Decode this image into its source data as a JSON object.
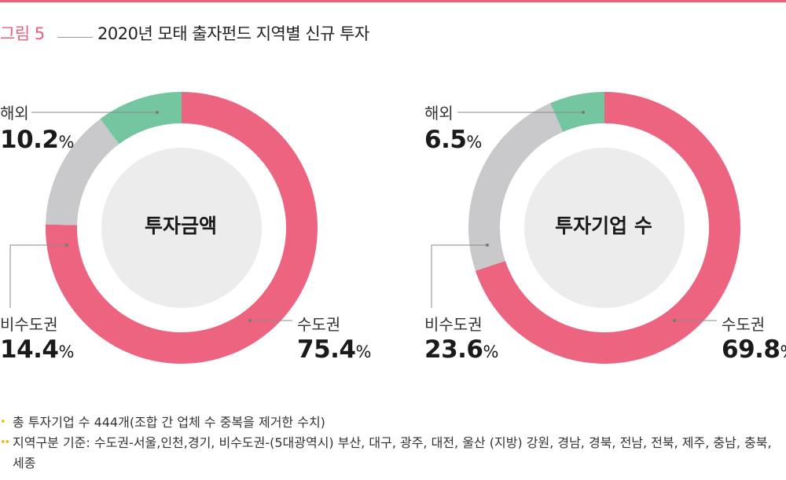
{
  "figure": {
    "label": "그림 5",
    "title": "2020년 모태 출자펀드 지역별 신규 투자"
  },
  "colors": {
    "capital": "#ec6480",
    "non_capital": "#c9c9cb",
    "overseas": "#74c6a0",
    "center": "#ececec",
    "accent": "#e8607a",
    "bullet": "#e8b820"
  },
  "chart_data": [
    {
      "type": "pie",
      "center_label": "투자금액",
      "slices": [
        {
          "name": "수도권",
          "value": 75.4
        },
        {
          "name": "비수도권",
          "value": 14.4
        },
        {
          "name": "해외",
          "value": 10.2
        }
      ],
      "unit": "%"
    },
    {
      "type": "pie",
      "center_label": "투자기업 수",
      "slices": [
        {
          "name": "수도권",
          "value": 69.8
        },
        {
          "name": "비수도권",
          "value": 23.6
        },
        {
          "name": "해외",
          "value": 6.5
        }
      ],
      "unit": "%"
    }
  ],
  "notes": {
    "marker1": "•",
    "marker2": "••",
    "note1": "총 투자기업 수 444개(조합 간 업체 수 중복을 제거한 수치)",
    "note2": "지역구분 기준: 수도권-서울,인천,경기, 비수도권-(5대광역시) 부산, 대구, 광주, 대전, 울산 (지방) 강원, 경남, 경북, 전남, 전북, 제주, 충남, 충북, 세종"
  }
}
